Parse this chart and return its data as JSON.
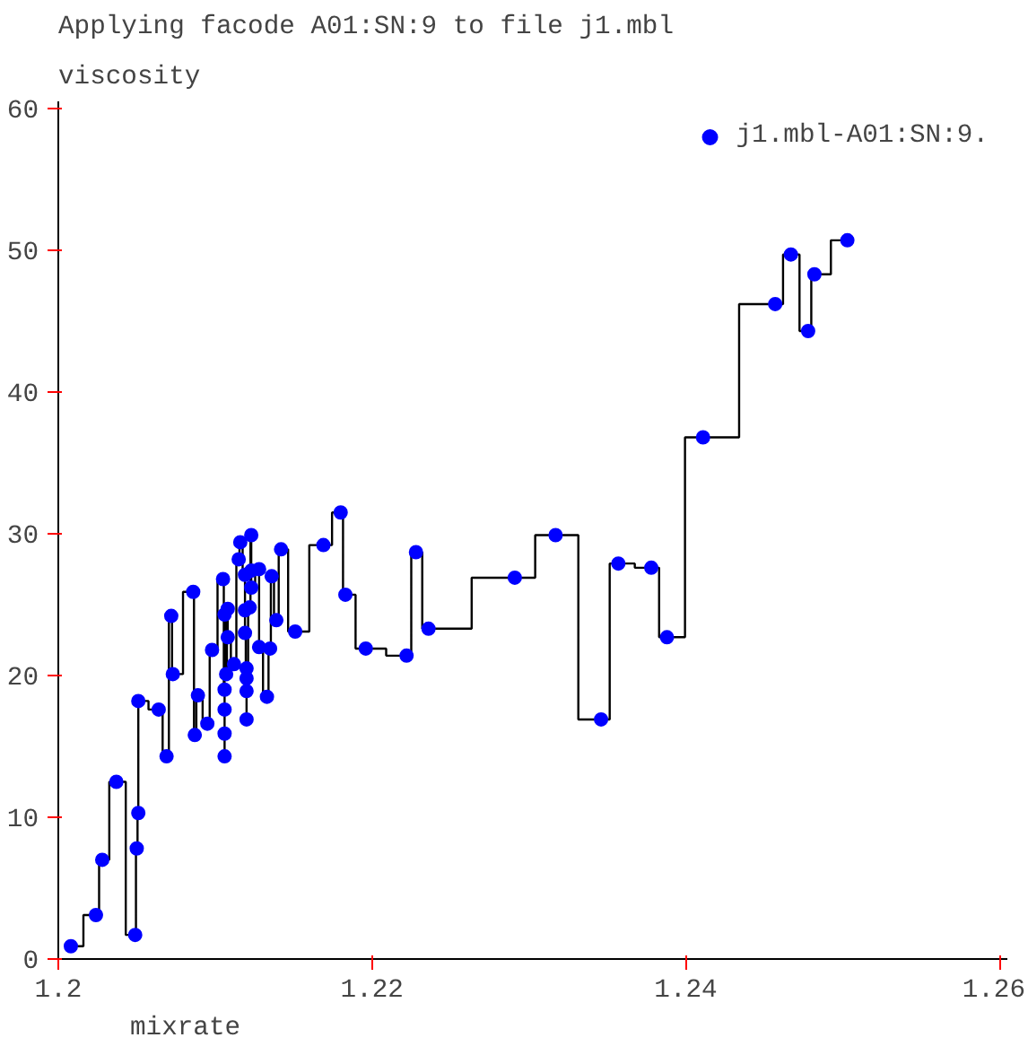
{
  "chart_data": {
    "type": "step",
    "title": "Applying facode A01:SN:9 to file j1.mbl",
    "ylabel": "viscosity",
    "xlabel": "mixrate",
    "marker": "circle",
    "grid": false,
    "legend": "top right",
    "xlim": [
      1.2,
      1.2605
    ],
    "ylim": [
      0,
      60.5
    ],
    "xticks": [
      {
        "value": 1.2,
        "label": "1.2"
      },
      1.22,
      1.24,
      1.26
    ],
    "yticks": [
      0,
      10,
      20,
      30,
      40,
      50,
      60
    ],
    "series": [
      {
        "name": "j1.mbl-A01:SN:9.",
        "color": "#0000ff",
        "x": [
          1.2008,
          1.2024,
          1.2028,
          1.2037,
          1.2049,
          1.205,
          1.2051,
          1.2051,
          1.2064,
          1.2069,
          1.2072,
          1.2073,
          1.2086,
          1.2087,
          1.2089,
          1.2095,
          1.2098,
          1.2105,
          1.2106,
          1.2106,
          1.2106,
          1.2106,
          1.2106,
          1.2107,
          1.2108,
          1.2108,
          1.2112,
          1.2115,
          1.2116,
          1.2119,
          1.2119,
          1.2119,
          1.212,
          1.212,
          1.212,
          1.212,
          1.2122,
          1.2123,
          1.2123,
          1.2123,
          1.2128,
          1.2128,
          1.2133,
          1.2135,
          1.2136,
          1.2139,
          1.2142,
          1.2151,
          1.2169,
          1.218,
          1.2183,
          1.2196,
          1.2222,
          1.2228,
          1.2236,
          1.2291,
          1.2317,
          1.2346,
          1.2357,
          1.2378,
          1.2388,
          1.2411,
          1.2457,
          1.2467,
          1.2478,
          1.2482,
          1.2503
        ],
        "values": [
          0.9,
          3.1,
          7.0,
          12.5,
          1.7,
          7.8,
          10.3,
          18.2,
          17.6,
          14.3,
          24.2,
          20.1,
          25.9,
          15.8,
          18.6,
          16.6,
          21.8,
          26.8,
          19.0,
          17.6,
          15.9,
          14.3,
          24.3,
          20.1,
          24.7,
          22.7,
          20.8,
          28.2,
          29.4,
          27.1,
          24.6,
          23.0,
          20.5,
          19.8,
          16.9,
          18.9,
          24.8,
          29.9,
          27.4,
          26.2,
          27.5,
          22.0,
          18.5,
          21.9,
          27.0,
          23.9,
          28.9,
          23.1,
          29.2,
          31.5,
          25.7,
          21.9,
          21.4,
          28.7,
          23.3,
          26.9,
          29.9,
          16.9,
          27.9,
          27.6,
          22.7,
          36.8,
          46.2,
          49.7,
          44.3,
          48.3,
          50.7
        ]
      }
    ]
  }
}
